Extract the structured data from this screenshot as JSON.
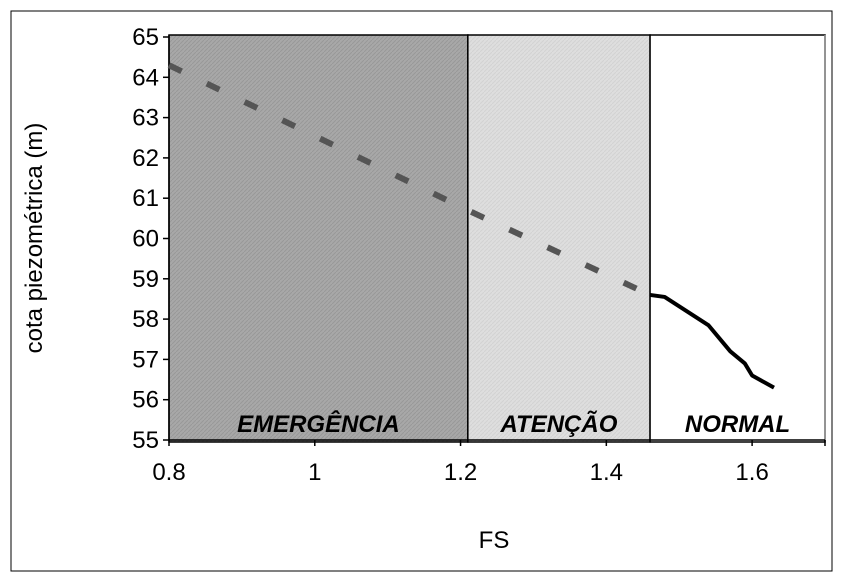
{
  "chart_data": {
    "type": "line",
    "title": "",
    "xlabel": "FS",
    "ylabel": "cota piezométrica (m)",
    "xlim": [
      0.8,
      1.7
    ],
    "ylim": [
      55,
      65
    ],
    "x_ticks": [
      "0.8",
      "1",
      "1.2",
      "1.4",
      "1.6"
    ],
    "x_tick_values": [
      0.8,
      1.0,
      1.2,
      1.4,
      1.6
    ],
    "y_ticks": [
      "55",
      "56",
      "57",
      "58",
      "59",
      "60",
      "61",
      "62",
      "63",
      "64",
      "65"
    ],
    "y_tick_values": [
      55,
      56,
      57,
      58,
      59,
      60,
      61,
      62,
      63,
      64,
      65
    ],
    "grid": false,
    "zones": [
      {
        "label": "EMERGÊNCIA",
        "x_start": 0.8,
        "x_end": 1.21,
        "color": "#a9a9a9"
      },
      {
        "label": "ATENÇÃO",
        "x_start": 1.21,
        "x_end": 1.46,
        "color": "#dcdcdc"
      },
      {
        "label": "NORMAL",
        "x_start": 1.46,
        "x_end": 1.7,
        "color": "#ffffff"
      }
    ],
    "series": [
      {
        "style": "dashed",
        "color": "#555555",
        "x": [
          0.8,
          1.21,
          1.46
        ],
        "y": [
          64.3,
          60.7,
          58.6
        ]
      },
      {
        "style": "solid",
        "color": "#000000",
        "x": [
          1.46,
          1.48,
          1.51,
          1.54,
          1.57,
          1.59,
          1.6,
          1.63
        ],
        "y": [
          58.6,
          58.55,
          58.2,
          57.85,
          57.2,
          56.9,
          56.6,
          56.3
        ]
      }
    ]
  }
}
